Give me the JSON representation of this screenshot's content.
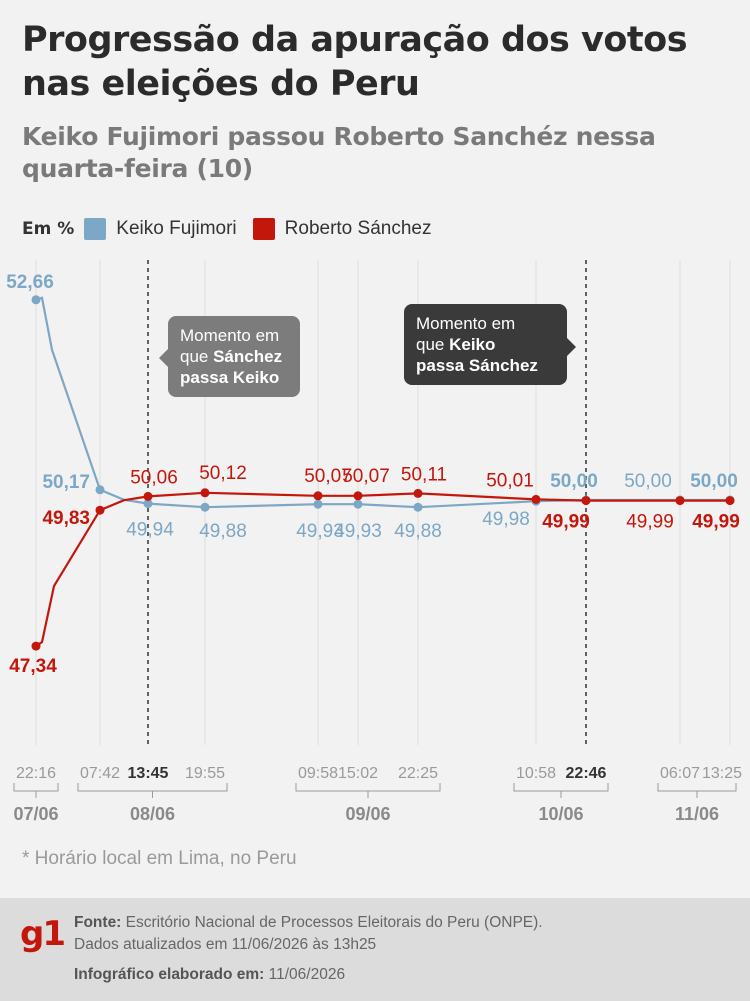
{
  "title": "Progressão da apuração dos votos nas eleições do Peru",
  "subtitle": "Keiko Fujimori passou Roberto Sanchéz nessa quarta-feira (10)",
  "legend": {
    "unit": "Em %",
    "items": [
      {
        "label": "Keiko Fujimori",
        "color": "#7da7c6"
      },
      {
        "label": "Roberto Sánchez",
        "color": "#c4170c"
      }
    ]
  },
  "callouts": {
    "first": {
      "line1": "Momento em",
      "line2_plain": "que ",
      "line2_bold": "Sánchez",
      "line3_bold": "passa Keiko"
    },
    "second": {
      "line1": "Momento em",
      "line2_plain": "que ",
      "line2_bold": "Keiko",
      "line3_bold": "passa Sánchez"
    }
  },
  "chart_data": {
    "type": "line",
    "unit": "%",
    "x": [
      "22:16",
      "07:42",
      "13:45",
      "19:55",
      "09:58",
      "15:02",
      "22:25",
      "10:58",
      "22:46",
      "06:07",
      "13:25"
    ],
    "x_bold": [
      false,
      false,
      true,
      false,
      false,
      false,
      false,
      false,
      true,
      false,
      false
    ],
    "date_groups": [
      {
        "label": "07/06",
        "from": 0,
        "to": 0
      },
      {
        "label": "08/06",
        "from": 1,
        "to": 3
      },
      {
        "label": "09/06",
        "from": 4,
        "to": 6
      },
      {
        "label": "10/06",
        "from": 7,
        "to": 8
      },
      {
        "label": "11/06",
        "from": 9,
        "to": 10
      }
    ],
    "series": [
      {
        "name": "Keiko Fujimori",
        "color": "#7da7c6",
        "values": [
          52.66,
          50.17,
          49.94,
          49.88,
          49.93,
          49.93,
          49.88,
          49.98,
          50.0,
          50.0,
          50.0
        ],
        "labels": [
          "52,66",
          "50,17",
          "49,94",
          "49,88",
          "49,93",
          "49,93",
          "49,88",
          "49,98",
          "50,00",
          "50,00",
          "50,00"
        ],
        "label_bold": [
          true,
          true,
          false,
          false,
          false,
          false,
          false,
          false,
          true,
          false,
          true
        ]
      },
      {
        "name": "Roberto Sánchez",
        "color": "#c4170c",
        "values": [
          47.34,
          49.83,
          50.06,
          50.12,
          50.07,
          50.07,
          50.11,
          50.01,
          49.99,
          49.99,
          49.99
        ],
        "labels": [
          "47,34",
          "49,83",
          "50,06",
          "50,12",
          "50,07",
          "50,07",
          "50,11",
          "50,01",
          "49,99",
          "49,99",
          "49,99"
        ],
        "label_bold": [
          true,
          true,
          false,
          false,
          false,
          false,
          false,
          false,
          true,
          false,
          true
        ]
      }
    ],
    "crossover_markers": [
      "13:45",
      "22:46"
    ]
  },
  "footnote": "* Horário local em Lima, no Peru",
  "footer": {
    "logo": "g1",
    "source_label": "Fonte:",
    "source_text": "Escritório Nacional de Processos Eleitorais do Peru (ONPE).",
    "updated_text": "Dados atualizados em 11/06/2026 às 13h25",
    "made_label": "Infográfico elaborado em:",
    "made_text": "11/06/2026"
  }
}
